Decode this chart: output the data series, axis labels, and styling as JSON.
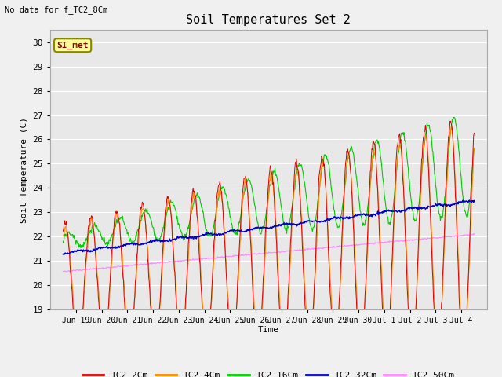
{
  "title": "Soil Temperatures Set 2",
  "subtitle": "No data for f_TC2_8Cm",
  "xlabel": "Time",
  "ylabel": "Soil Temperature (C)",
  "ylim": [
    19.0,
    30.5
  ],
  "yticks": [
    19.0,
    20.0,
    21.0,
    22.0,
    23.0,
    24.0,
    25.0,
    26.0,
    27.0,
    28.0,
    29.0,
    30.0
  ],
  "fig_bg": "#f0f0f0",
  "plot_bg": "#e8e8e8",
  "line_colors": {
    "TC2_2Cm": "#dd0000",
    "TC2_4Cm": "#ff8800",
    "TC2_16Cm": "#00cc00",
    "TC2_32Cm": "#0000cc",
    "TC2_50Cm": "#ff88ff"
  },
  "legend_label": "SI_met",
  "legend_bg": "#ffff99",
  "legend_border": "#888800"
}
